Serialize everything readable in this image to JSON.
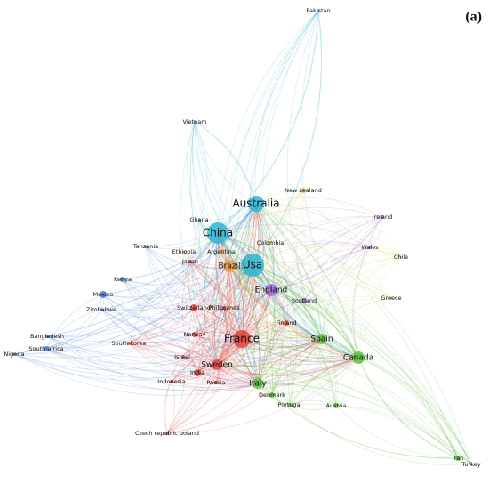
{
  "panel_label": "(a)",
  "nodes": [
    {
      "label": "Pakistan"
    },
    {
      "label": "Vietnam"
    },
    {
      "label": "Australia"
    },
    {
      "label": "New zealand"
    },
    {
      "label": "Ireland"
    },
    {
      "label": "Ghana"
    },
    {
      "label": "China"
    },
    {
      "label": "Tanzania"
    },
    {
      "label": "Colombia"
    },
    {
      "label": "Ethiopia"
    },
    {
      "label": "Argentina"
    },
    {
      "label": "Wales"
    },
    {
      "label": "Chile"
    },
    {
      "label": "Japan"
    },
    {
      "label": "Brazil"
    },
    {
      "label": "Usa"
    },
    {
      "label": "Kenya"
    },
    {
      "label": "England"
    },
    {
      "label": "Mexico"
    },
    {
      "label": "Scotland"
    },
    {
      "label": "Greece"
    },
    {
      "label": "Zimbabwe"
    },
    {
      "label": "Switzerland"
    },
    {
      "label": "Philippines"
    },
    {
      "label": "Finland"
    },
    {
      "label": "Norway"
    },
    {
      "label": "France"
    },
    {
      "label": "Spain"
    },
    {
      "label": "Bangladesh"
    },
    {
      "label": "South korea"
    },
    {
      "label": "South africa"
    },
    {
      "label": "Nigeria"
    },
    {
      "label": "Canada"
    },
    {
      "label": "Israel"
    },
    {
      "label": "Sweden"
    },
    {
      "label": "India"
    },
    {
      "label": "Indonesia"
    },
    {
      "label": "Russia"
    },
    {
      "label": "Italy"
    },
    {
      "label": "Denmark"
    },
    {
      "label": "Portugal"
    },
    {
      "label": "Austria"
    },
    {
      "label": "Czech republic poland"
    },
    {
      "label": "Iran"
    },
    {
      "label": "Turkey"
    }
  ]
}
